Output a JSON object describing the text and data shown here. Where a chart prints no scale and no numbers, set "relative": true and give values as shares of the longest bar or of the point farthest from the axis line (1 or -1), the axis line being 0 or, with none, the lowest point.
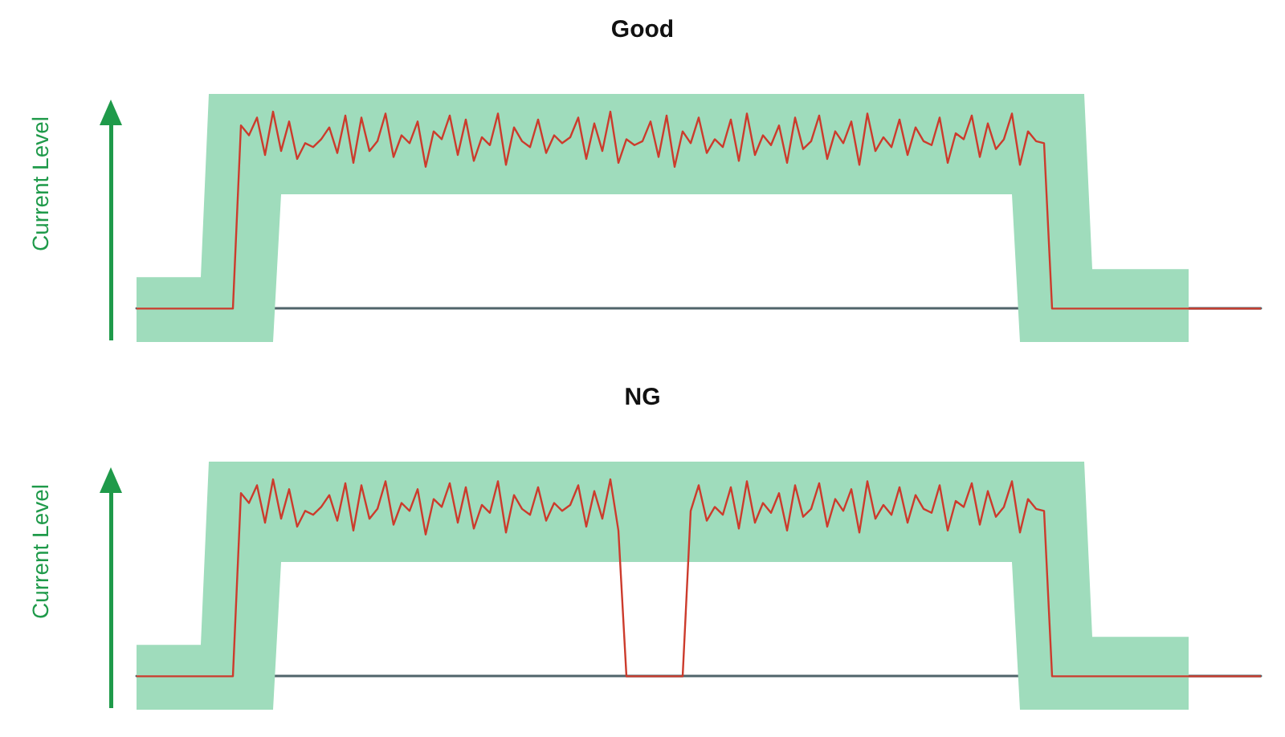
{
  "chart_data": [
    {
      "type": "line",
      "title": "Good",
      "ylabel": "Current Level",
      "relative": true,
      "categories": [
        null,
        null,
        null,
        null,
        null,
        null,
        null,
        null,
        null,
        null,
        null,
        null,
        null,
        null,
        null,
        null,
        null,
        null,
        null,
        null,
        null,
        null,
        null,
        null,
        null,
        null,
        null,
        null,
        null,
        null,
        null,
        null,
        null,
        null,
        null,
        null,
        null,
        null,
        null,
        null,
        null,
        null,
        null,
        null,
        null,
        null,
        null,
        null,
        null,
        null,
        null,
        null,
        null,
        null,
        null,
        null,
        null,
        null,
        null,
        null,
        null,
        null,
        null,
        null,
        null,
        null,
        null,
        null,
        null,
        null,
        null,
        null,
        null,
        null,
        null,
        null,
        null,
        null,
        null,
        null,
        null,
        null,
        null,
        null,
        null,
        null,
        null,
        null,
        null,
        null,
        null,
        null,
        null,
        null,
        null,
        null,
        null,
        null,
        null,
        null,
        null,
        null,
        null,
        null,
        null,
        null,
        null,
        null,
        null,
        null,
        null,
        null,
        null,
        null,
        null,
        null,
        null,
        null,
        null,
        null,
        null,
        null,
        null,
        null,
        null,
        null,
        null,
        null,
        null,
        null,
        null,
        null,
        null,
        null,
        null,
        null,
        null,
        null,
        null,
        null,
        null
      ],
      "series": [
        {
          "color": "#cc3b2c",
          "values": [
            0,
            0,
            0,
            0,
            0,
            0,
            0,
            0,
            0,
            0,
            0,
            0,
            0,
            0.93,
            0.88,
            0.97,
            0.78,
            1.0,
            0.8,
            0.95,
            0.76,
            0.84,
            0.82,
            0.86,
            0.92,
            0.79,
            0.98,
            0.74,
            0.97,
            0.8,
            0.85,
            0.99,
            0.77,
            0.88,
            0.84,
            0.95,
            0.72,
            0.9,
            0.86,
            0.98,
            0.78,
            0.96,
            0.75,
            0.87,
            0.83,
            0.99,
            0.73,
            0.92,
            0.85,
            0.82,
            0.96,
            0.79,
            0.88,
            0.84,
            0.87,
            0.97,
            0.76,
            0.94,
            0.8,
            1.0,
            0.74,
            0.86,
            0.83,
            0.85,
            0.95,
            0.77,
            0.98,
            0.72,
            0.9,
            0.84,
            0.97,
            0.79,
            0.86,
            0.82,
            0.96,
            0.75,
            0.99,
            0.78,
            0.88,
            0.83,
            0.93,
            0.74,
            0.97,
            0.81,
            0.85,
            0.98,
            0.76,
            0.9,
            0.84,
            0.95,
            0.73,
            0.99,
            0.8,
            0.87,
            0.82,
            0.96,
            0.78,
            0.92,
            0.85,
            0.83,
            0.97,
            0.74,
            0.89,
            0.86,
            0.98,
            0.77,
            0.94,
            0.81,
            0.86,
            0.99,
            0.73,
            0.9,
            0.85,
            0.84,
            0,
            0,
            0,
            0,
            0,
            0,
            0,
            0,
            0,
            0,
            0,
            0,
            0,
            0,
            0,
            0,
            0,
            0,
            0,
            0,
            0,
            0,
            0,
            0,
            0,
            0,
            0
          ],
          "lower": [
            -0.17,
            -0.17,
            -0.17,
            -0.17,
            -0.17,
            -0.17,
            -0.17,
            -0.17,
            -0.17,
            -0.17,
            -0.17,
            -0.17,
            -0.17,
            -0.17,
            -0.17,
            -0.17,
            -0.17,
            -0.17,
            0.58,
            0.58,
            0.58,
            0.58,
            0.58,
            0.58,
            0.58,
            0.58,
            0.58,
            0.58,
            0.58,
            0.58,
            0.58,
            0.58,
            0.58,
            0.58,
            0.58,
            0.58,
            0.58,
            0.58,
            0.58,
            0.58,
            0.58,
            0.58,
            0.58,
            0.58,
            0.58,
            0.58,
            0.58,
            0.58,
            0.58,
            0.58,
            0.58,
            0.58,
            0.58,
            0.58,
            0.58,
            0.58,
            0.58,
            0.58,
            0.58,
            0.58,
            0.58,
            0.58,
            0.58,
            0.58,
            0.58,
            0.58,
            0.58,
            0.58,
            0.58,
            0.58,
            0.58,
            0.58,
            0.58,
            0.58,
            0.58,
            0.58,
            0.58,
            0.58,
            0.58,
            0.58,
            0.58,
            0.58,
            0.58,
            0.58,
            0.58,
            0.58,
            0.58,
            0.58,
            0.58,
            0.58,
            0.58,
            0.58,
            0.58,
            0.58,
            0.58,
            0.58,
            0.58,
            0.58,
            0.58,
            0.58,
            0.58,
            0.58,
            0.58,
            0.58,
            0.58,
            0.58,
            0.58,
            0.58,
            0.58,
            0.58,
            -0.17,
            -0.17,
            -0.17,
            -0.17,
            -0.17,
            -0.17,
            -0.17,
            -0.17,
            -0.17,
            -0.17,
            -0.17,
            -0.17,
            -0.17,
            -0.17,
            -0.17,
            -0.17,
            -0.17,
            -0.17,
            -0.17,
            -0.17,
            -0.17,
            -0.17,
            null,
            null,
            null,
            null,
            null,
            null,
            null,
            null,
            null
          ],
          "upper": [
            0.16,
            0.16,
            0.16,
            0.16,
            0.16,
            0.16,
            0.16,
            0.16,
            0.16,
            1.09,
            1.09,
            1.09,
            1.09,
            1.09,
            1.09,
            1.09,
            1.09,
            1.09,
            1.09,
            1.09,
            1.09,
            1.09,
            1.09,
            1.09,
            1.09,
            1.09,
            1.09,
            1.09,
            1.09,
            1.09,
            1.09,
            1.09,
            1.09,
            1.09,
            1.09,
            1.09,
            1.09,
            1.09,
            1.09,
            1.09,
            1.09,
            1.09,
            1.09,
            1.09,
            1.09,
            1.09,
            1.09,
            1.09,
            1.09,
            1.09,
            1.09,
            1.09,
            1.09,
            1.09,
            1.09,
            1.09,
            1.09,
            1.09,
            1.09,
            1.09,
            1.09,
            1.09,
            1.09,
            1.09,
            1.09,
            1.09,
            1.09,
            1.09,
            1.09,
            1.09,
            1.09,
            1.09,
            1.09,
            1.09,
            1.09,
            1.09,
            1.09,
            1.09,
            1.09,
            1.09,
            1.09,
            1.09,
            1.09,
            1.09,
            1.09,
            1.09,
            1.09,
            1.09,
            1.09,
            1.09,
            1.09,
            1.09,
            1.09,
            1.09,
            1.09,
            1.09,
            1.09,
            1.09,
            1.09,
            1.09,
            1.09,
            1.09,
            1.09,
            1.09,
            1.09,
            1.09,
            1.09,
            1.09,
            1.09,
            1.09,
            1.09,
            1.09,
            1.09,
            1.09,
            1.09,
            1.09,
            1.09,
            1.09,
            1.09,
            0.2,
            0.2,
            0.2,
            0.2,
            0.2,
            0.2,
            0.2,
            0.2,
            0.2,
            0.2,
            0.2,
            0.2,
            0.2,
            null,
            null,
            null,
            null,
            null,
            null,
            null,
            null,
            null
          ]
        }
      ]
    },
    {
      "type": "line",
      "title": "NG",
      "ylabel": "Current Level",
      "relative": true,
      "categories": [
        null,
        null,
        null,
        null,
        null,
        null,
        null,
        null,
        null,
        null,
        null,
        null,
        null,
        null,
        null,
        null,
        null,
        null,
        null,
        null,
        null,
        null,
        null,
        null,
        null,
        null,
        null,
        null,
        null,
        null,
        null,
        null,
        null,
        null,
        null,
        null,
        null,
        null,
        null,
        null,
        null,
        null,
        null,
        null,
        null,
        null,
        null,
        null,
        null,
        null,
        null,
        null,
        null,
        null,
        null,
        null,
        null,
        null,
        null,
        null,
        null,
        null,
        null,
        null,
        null,
        null,
        null,
        null,
        null,
        null,
        null,
        null,
        null,
        null,
        null,
        null,
        null,
        null,
        null,
        null,
        null,
        null,
        null,
        null,
        null,
        null,
        null,
        null,
        null,
        null,
        null,
        null,
        null,
        null,
        null,
        null,
        null,
        null,
        null,
        null,
        null,
        null,
        null,
        null,
        null,
        null,
        null,
        null,
        null,
        null,
        null,
        null,
        null,
        null,
        null,
        null,
        null,
        null,
        null,
        null,
        null,
        null,
        null,
        null,
        null,
        null,
        null,
        null,
        null,
        null,
        null,
        null,
        null,
        null,
        null,
        null,
        null,
        null,
        null,
        null,
        null
      ],
      "series": [
        {
          "color": "#cc3b2c",
          "values": [
            0,
            0,
            0,
            0,
            0,
            0,
            0,
            0,
            0,
            0,
            0,
            0,
            0,
            0.93,
            0.88,
            0.97,
            0.78,
            1.0,
            0.8,
            0.95,
            0.76,
            0.84,
            0.82,
            0.86,
            0.92,
            0.79,
            0.98,
            0.74,
            0.97,
            0.8,
            0.85,
            0.99,
            0.77,
            0.88,
            0.84,
            0.95,
            0.72,
            0.9,
            0.86,
            0.98,
            0.78,
            0.96,
            0.75,
            0.87,
            0.83,
            0.99,
            0.73,
            0.92,
            0.85,
            0.82,
            0.96,
            0.79,
            0.88,
            0.84,
            0.87,
            0.97,
            0.76,
            0.94,
            0.8,
            1.0,
            0.74,
            0,
            0,
            0,
            0,
            0,
            0,
            0,
            0,
            0.84,
            0.97,
            0.79,
            0.86,
            0.82,
            0.96,
            0.75,
            0.99,
            0.78,
            0.88,
            0.83,
            0.93,
            0.74,
            0.97,
            0.81,
            0.85,
            0.98,
            0.76,
            0.9,
            0.84,
            0.95,
            0.73,
            0.99,
            0.8,
            0.87,
            0.82,
            0.96,
            0.78,
            0.92,
            0.85,
            0.83,
            0.97,
            0.74,
            0.89,
            0.86,
            0.98,
            0.77,
            0.94,
            0.81,
            0.86,
            0.99,
            0.73,
            0.9,
            0.85,
            0.84,
            0,
            0,
            0,
            0,
            0,
            0,
            0,
            0,
            0,
            0,
            0,
            0,
            0,
            0,
            0,
            0,
            0,
            0,
            0,
            0,
            0,
            0,
            0,
            0,
            0,
            0,
            0
          ],
          "lower": [
            -0.17,
            -0.17,
            -0.17,
            -0.17,
            -0.17,
            -0.17,
            -0.17,
            -0.17,
            -0.17,
            -0.17,
            -0.17,
            -0.17,
            -0.17,
            -0.17,
            -0.17,
            -0.17,
            -0.17,
            -0.17,
            0.58,
            0.58,
            0.58,
            0.58,
            0.58,
            0.58,
            0.58,
            0.58,
            0.58,
            0.58,
            0.58,
            0.58,
            0.58,
            0.58,
            0.58,
            0.58,
            0.58,
            0.58,
            0.58,
            0.58,
            0.58,
            0.58,
            0.58,
            0.58,
            0.58,
            0.58,
            0.58,
            0.58,
            0.58,
            0.58,
            0.58,
            0.58,
            0.58,
            0.58,
            0.58,
            0.58,
            0.58,
            0.58,
            0.58,
            0.58,
            0.58,
            0.58,
            0.58,
            0.58,
            0.58,
            0.58,
            0.58,
            0.58,
            0.58,
            0.58,
            0.58,
            0.58,
            0.58,
            0.58,
            0.58,
            0.58,
            0.58,
            0.58,
            0.58,
            0.58,
            0.58,
            0.58,
            0.58,
            0.58,
            0.58,
            0.58,
            0.58,
            0.58,
            0.58,
            0.58,
            0.58,
            0.58,
            0.58,
            0.58,
            0.58,
            0.58,
            0.58,
            0.58,
            0.58,
            0.58,
            0.58,
            0.58,
            0.58,
            0.58,
            0.58,
            0.58,
            0.58,
            0.58,
            0.58,
            0.58,
            0.58,
            0.58,
            -0.17,
            -0.17,
            -0.17,
            -0.17,
            -0.17,
            -0.17,
            -0.17,
            -0.17,
            -0.17,
            -0.17,
            -0.17,
            -0.17,
            -0.17,
            -0.17,
            -0.17,
            -0.17,
            -0.17,
            -0.17,
            -0.17,
            -0.17,
            -0.17,
            -0.17,
            null,
            null,
            null,
            null,
            null,
            null,
            null,
            null,
            null
          ],
          "upper": [
            0.16,
            0.16,
            0.16,
            0.16,
            0.16,
            0.16,
            0.16,
            0.16,
            0.16,
            1.09,
            1.09,
            1.09,
            1.09,
            1.09,
            1.09,
            1.09,
            1.09,
            1.09,
            1.09,
            1.09,
            1.09,
            1.09,
            1.09,
            1.09,
            1.09,
            1.09,
            1.09,
            1.09,
            1.09,
            1.09,
            1.09,
            1.09,
            1.09,
            1.09,
            1.09,
            1.09,
            1.09,
            1.09,
            1.09,
            1.09,
            1.09,
            1.09,
            1.09,
            1.09,
            1.09,
            1.09,
            1.09,
            1.09,
            1.09,
            1.09,
            1.09,
            1.09,
            1.09,
            1.09,
            1.09,
            1.09,
            1.09,
            1.09,
            1.09,
            1.09,
            1.09,
            1.09,
            1.09,
            1.09,
            1.09,
            1.09,
            1.09,
            1.09,
            1.09,
            1.09,
            1.09,
            1.09,
            1.09,
            1.09,
            1.09,
            1.09,
            1.09,
            1.09,
            1.09,
            1.09,
            1.09,
            1.09,
            1.09,
            1.09,
            1.09,
            1.09,
            1.09,
            1.09,
            1.09,
            1.09,
            1.09,
            1.09,
            1.09,
            1.09,
            1.09,
            1.09,
            1.09,
            1.09,
            1.09,
            1.09,
            1.09,
            1.09,
            1.09,
            1.09,
            1.09,
            1.09,
            1.09,
            1.09,
            1.09,
            1.09,
            1.09,
            1.09,
            1.09,
            1.09,
            1.09,
            1.09,
            1.09,
            1.09,
            1.09,
            0.2,
            0.2,
            0.2,
            0.2,
            0.2,
            0.2,
            0.2,
            0.2,
            0.2,
            0.2,
            0.2,
            0.2,
            0.2,
            null,
            null,
            null,
            null,
            null,
            null,
            null,
            null,
            null
          ]
        }
      ]
    }
  ]
}
